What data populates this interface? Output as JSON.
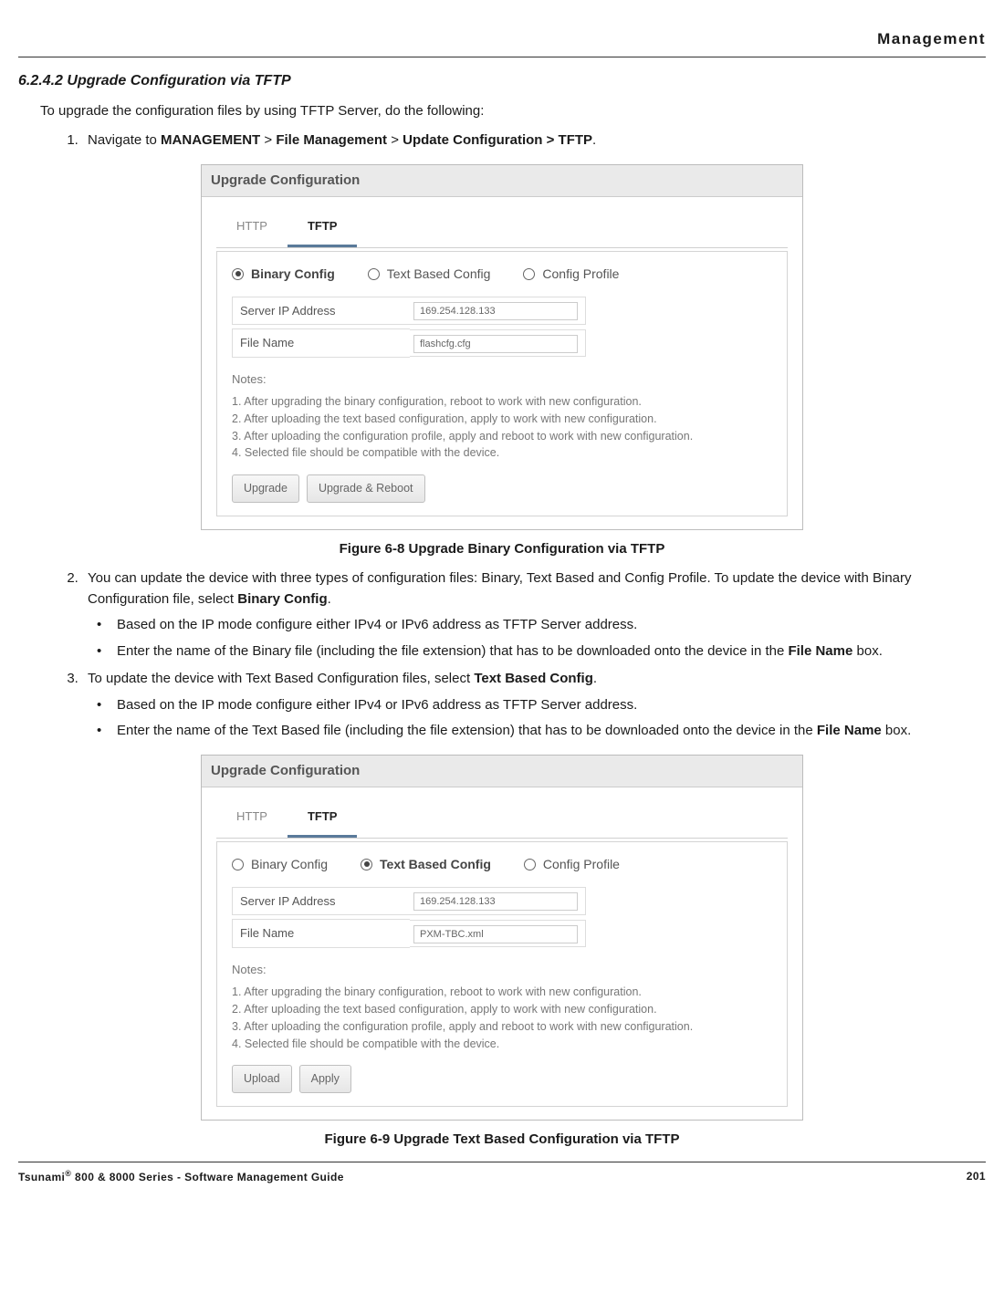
{
  "header": {
    "chapter": "Management"
  },
  "section": {
    "number": "6.2.4.2",
    "title": "Upgrade Configuration via TFTP",
    "intro": "To upgrade the configuration files by using TFTP Server, do the following:",
    "step1_pre": "Navigate to ",
    "step1_nav1": "MANAGEMENT",
    "step1_sep": " > ",
    "step1_nav2": "File Management",
    "step1_nav3": "Update Configuration > TFTP",
    "step1_end": "."
  },
  "figure1": {
    "caption": "Figure 6-8 Upgrade Binary Configuration via TFTP",
    "panel_title": "Upgrade Configuration",
    "tabs": {
      "http": "HTTP",
      "tftp": "TFTP"
    },
    "radios": {
      "binary": "Binary Config",
      "text": "Text Based Config",
      "profile": "Config Profile",
      "selected": "binary"
    },
    "fields": {
      "server_label": "Server IP Address",
      "server_value": "169.254.128.133",
      "file_label": "File Name",
      "file_value": "flashcfg.cfg"
    },
    "notes_label": "Notes:",
    "notes": [
      "1. After upgrading the binary configuration, reboot to work with new configuration.",
      "2. After uploading the text based configuration, apply to work with new configuration.",
      "3. After uploading the configuration profile, apply and reboot to work with new configuration.",
      "4. Selected file should be compatible with the device."
    ],
    "buttons": {
      "b1": "Upgrade",
      "b2": "Upgrade & Reboot"
    }
  },
  "step2": {
    "text_a": "You can update the device with three types of configuration files: Binary, Text Based and Config Profile. To update the device with Binary Configuration file, select ",
    "bold_a": "Binary Config",
    "text_b": ".",
    "sub1": "Based on the IP mode configure either IPv4 or IPv6 address as TFTP Server address.",
    "sub2_a": "Enter the name of the Binary file (including the file extension) that has to be downloaded onto the device in the ",
    "sub2_bold": "File Name",
    "sub2_b": " box."
  },
  "step3": {
    "text_a": "To update the device with Text Based Configuration files, select ",
    "bold_a": "Text Based Config",
    "text_b": ".",
    "sub1": "Based on the IP mode configure either IPv4 or IPv6 address as TFTP Server address.",
    "sub2_a": "Enter the name of the Text Based file (including the file extension) that has to be downloaded onto the device in the ",
    "sub2_bold": "File Name",
    "sub2_b": " box."
  },
  "figure2": {
    "caption": "Figure 6-9 Upgrade Text Based Configuration via TFTP",
    "panel_title": "Upgrade Configuration",
    "tabs": {
      "http": "HTTP",
      "tftp": "TFTP"
    },
    "radios": {
      "binary": "Binary Config",
      "text": "Text Based Config",
      "profile": "Config Profile",
      "selected": "text"
    },
    "fields": {
      "server_label": "Server IP Address",
      "server_value": "169.254.128.133",
      "file_label": "File Name",
      "file_value": "PXM-TBC.xml"
    },
    "notes_label": "Notes:",
    "notes": [
      "1. After upgrading the binary configuration, reboot to work with new configuration.",
      "2. After uploading the text based configuration, apply to work with new configuration.",
      "3. After uploading the configuration profile, apply and reboot to work with new configuration.",
      "4. Selected file should be compatible with the device."
    ],
    "buttons": {
      "b1": "Upload",
      "b2": "Apply"
    }
  },
  "footer": {
    "left_a": "Tsunami",
    "left_reg": "®",
    "left_b": " 800 & 8000 Series - Software Management Guide",
    "page": "201"
  }
}
